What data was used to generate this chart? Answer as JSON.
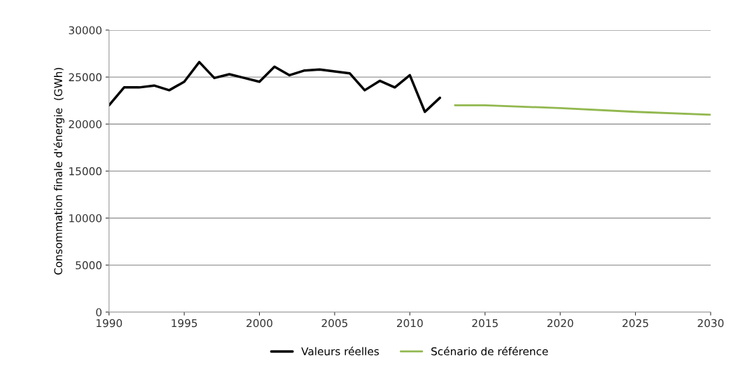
{
  "chart_data": {
    "type": "line",
    "ylabel": "Consommation finale d'énergie  (GWh)",
    "xlim": [
      1990,
      2030
    ],
    "xticks": [
      1990,
      1995,
      2000,
      2005,
      2010,
      2015,
      2020,
      2025,
      2030
    ],
    "ylim": [
      0,
      30000
    ],
    "yticks": [
      0,
      5000,
      10000,
      15000,
      20000,
      25000,
      30000
    ],
    "grid": "y",
    "legend": "bottom",
    "marker": "none",
    "line_style": "solid",
    "series": [
      {
        "name": "Valeurs réelles",
        "color": "#000000",
        "x": [
          1990,
          1991,
          1992,
          1993,
          1994,
          1995,
          1996,
          1997,
          1998,
          1999,
          2000,
          2001,
          2002,
          2003,
          2004,
          2005,
          2006,
          2007,
          2008,
          2009,
          2010,
          2011,
          2012
        ],
        "values": [
          22000,
          23900,
          23900,
          24100,
          23600,
          24500,
          26600,
          24900,
          25300,
          24900,
          24500,
          26100,
          25200,
          25700,
          25800,
          25600,
          25400,
          23600,
          24600,
          23900,
          25200,
          21300,
          22800
        ]
      },
      {
        "name": "Scénario de référence",
        "color": "#92b84f",
        "x": [
          2013,
          2015,
          2020,
          2025,
          2030
        ],
        "values": [
          22000,
          22000,
          21700,
          21300,
          21000
        ]
      }
    ]
  }
}
